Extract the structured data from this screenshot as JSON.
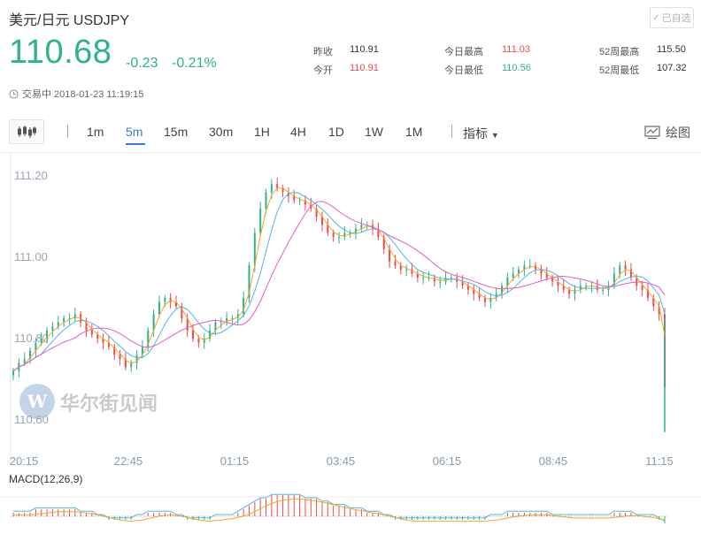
{
  "header": {
    "title": "美元/日元  USDJPY",
    "favorite_label": "已自选"
  },
  "quote": {
    "price": "110.68",
    "change": "-0.23",
    "change_pct": "-0.21%"
  },
  "stats": {
    "prev_close_label": "昨收",
    "prev_close": "110.91",
    "open_label": "今开",
    "open": "110.91",
    "day_high_label": "今日最高",
    "day_high": "111.03",
    "day_low_label": "今日最低",
    "day_low": "110.56",
    "w52_high_label": "52周最高",
    "w52_high": "115.50",
    "w52_low_label": "52周最低",
    "w52_low": "107.32"
  },
  "status": {
    "text": "交易中 2018-01-23 11:19:15"
  },
  "toolbar": {
    "periods": [
      "1m",
      "5m",
      "15m",
      "30m",
      "1H",
      "4H",
      "1D",
      "1W",
      "1M"
    ],
    "active_period": "5m",
    "indicator_label": "指标",
    "draw_label": "绘图"
  },
  "watermark": "华尔街见闻",
  "colors": {
    "up": "#2eb28f",
    "down": "#f0494d",
    "accent": "#2f7fd3",
    "ma_orange": "#f5a623",
    "ma_blue": "#4fb7e3",
    "ma_pink": "#e75cc0"
  },
  "chart_data": {
    "type": "candlestick",
    "ylim": [
      110.55,
      111.25
    ],
    "y_ticks": [
      "111.20",
      "111.00",
      "110.80",
      "110.60"
    ],
    "x_ticks": [
      "20:15",
      "22:45",
      "01:15",
      "03:45",
      "06:15",
      "08:45",
      "11:15"
    ],
    "close": [
      110.72,
      110.74,
      110.75,
      110.77,
      110.79,
      110.8,
      110.82,
      110.83,
      110.84,
      110.85,
      110.85,
      110.86,
      110.84,
      110.82,
      110.81,
      110.8,
      110.79,
      110.78,
      110.76,
      110.75,
      110.73,
      110.74,
      110.76,
      110.78,
      110.82,
      110.86,
      110.89,
      110.9,
      110.89,
      110.88,
      110.85,
      110.82,
      110.8,
      110.79,
      110.8,
      110.82,
      110.84,
      110.84,
      110.85,
      110.85,
      110.86,
      110.9,
      110.98,
      111.06,
      111.12,
      111.16,
      111.18,
      111.17,
      111.16,
      111.15,
      111.14,
      111.14,
      111.13,
      111.12,
      111.1,
      111.08,
      111.06,
      111.05,
      111.05,
      111.06,
      111.06,
      111.07,
      111.08,
      111.08,
      111.07,
      111.05,
      111.02,
      110.99,
      110.98,
      110.97,
      110.97,
      110.96,
      110.95,
      110.95,
      110.95,
      110.94,
      110.94,
      110.95,
      110.95,
      110.94,
      110.93,
      110.92,
      110.91,
      110.9,
      110.89,
      110.9,
      110.91,
      110.93,
      110.95,
      110.96,
      110.97,
      110.98,
      110.98,
      110.97,
      110.96,
      110.95,
      110.94,
      110.93,
      110.92,
      110.91,
      110.92,
      110.93,
      110.93,
      110.93,
      110.92,
      110.92,
      110.93,
      110.96,
      110.98,
      110.97,
      110.95,
      110.93,
      110.92,
      110.9,
      110.88,
      110.86,
      110.68
    ],
    "indicator": {
      "label": "MACD(12,26,9)",
      "hist": [
        0.01,
        0.01,
        0.01,
        0.01,
        0.02,
        0.02,
        0.02,
        0.02,
        0.02,
        0.02,
        0.02,
        0.02,
        0.01,
        0.01,
        0.01,
        0.0,
        0.0,
        -0.01,
        -0.01,
        -0.01,
        -0.01,
        -0.01,
        0.0,
        0.0,
        0.01,
        0.01,
        0.01,
        0.01,
        0.01,
        0.0,
        0.0,
        -0.01,
        -0.01,
        -0.01,
        -0.01,
        -0.01,
        0.0,
        0.0,
        0.0,
        0.0,
        0.01,
        0.02,
        0.03,
        0.04,
        0.05,
        0.05,
        0.06,
        0.06,
        0.06,
        0.06,
        0.06,
        0.06,
        0.05,
        0.05,
        0.05,
        0.04,
        0.04,
        0.03,
        0.03,
        0.03,
        0.02,
        0.02,
        0.02,
        0.01,
        0.01,
        0.01,
        0.0,
        0.0,
        -0.01,
        -0.01,
        -0.01,
        -0.01,
        -0.01,
        -0.01,
        -0.01,
        -0.01,
        -0.01,
        -0.01,
        -0.01,
        -0.01,
        -0.01,
        -0.01,
        -0.01,
        -0.01,
        -0.01,
        0.0,
        0.0,
        0.0,
        0.01,
        0.01,
        0.01,
        0.01,
        0.01,
        0.01,
        0.01,
        0.01,
        0.0,
        0.0,
        0.0,
        0.0,
        0.0,
        0.0,
        0.0,
        0.0,
        0.0,
        0.0,
        0.0,
        0.01,
        0.01,
        0.01,
        0.01,
        0.0,
        0.0,
        0.0,
        0.0,
        -0.01,
        -0.02
      ]
    }
  }
}
